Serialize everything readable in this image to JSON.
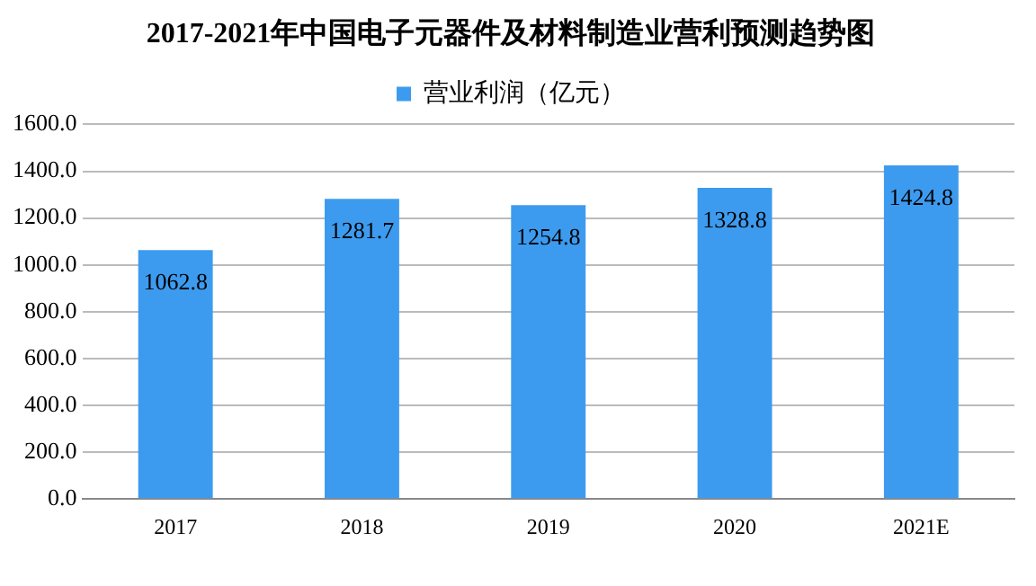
{
  "chart_data": {
    "type": "bar",
    "title": "2017-2021年中国电子元器件及材料制造业营利预测趋势图",
    "categories": [
      "2017",
      "2018",
      "2019",
      "2020",
      "2021E"
    ],
    "series": [
      {
        "name": "营业利润（亿元）",
        "color": "#3d9bef",
        "values": [
          1062.8,
          1281.7,
          1254.8,
          1328.8,
          1424.8
        ]
      }
    ],
    "ylim": [
      0,
      1600
    ],
    "yticks": [
      {
        "value": 0,
        "label": "0.0"
      },
      {
        "value": 200,
        "label": "200.0"
      },
      {
        "value": 400,
        "label": "400.0"
      },
      {
        "value": 600,
        "label": "600.0"
      },
      {
        "value": 800,
        "label": "800.0"
      },
      {
        "value": 1000,
        "label": "1000.0"
      },
      {
        "value": 1200,
        "label": "1200.0"
      },
      {
        "value": 1400,
        "label": "1400.0"
      },
      {
        "value": 1600,
        "label": "1600.0"
      }
    ],
    "grid": "y",
    "legend": "top",
    "data_labels": true
  }
}
